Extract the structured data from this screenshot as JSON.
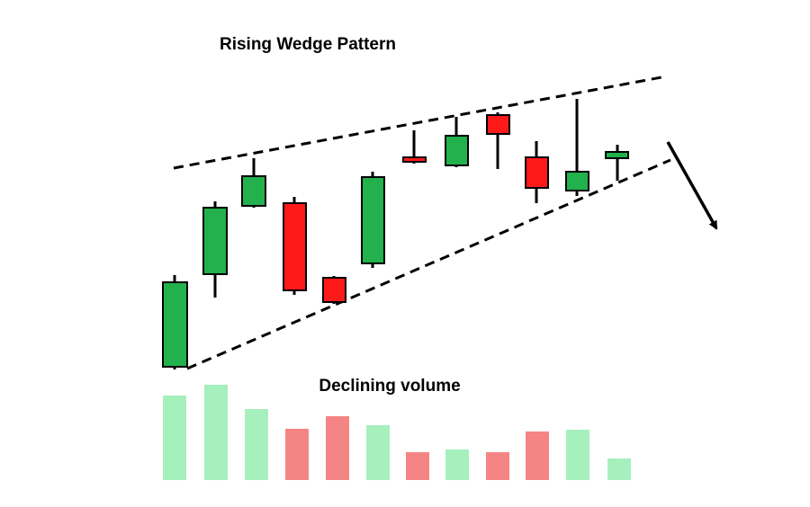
{
  "title": "Rising Wedge Pattern",
  "volume_label": "Declining volume"
}
